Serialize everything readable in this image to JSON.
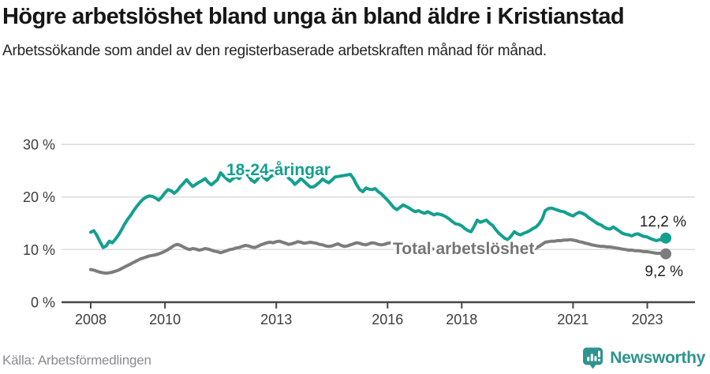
{
  "header": {
    "title": "Högre arbetslöshet bland unga än bland äldre i Kristianstad",
    "subtitle": "Arbetssökande som andel av den registerbaserade arbetskraften månad för månad."
  },
  "chart_data": {
    "type": "line",
    "title": "Högre arbetslöshet bland unga än bland äldre i Kristianstad",
    "subtitle": "Arbetssökande som andel av den registerbaserade arbetskraften månad för månad.",
    "unit": "%",
    "frequency": "monthly",
    "x_start": "2008-01",
    "x_end": "2023-07",
    "x_first_year": 2008,
    "x_span_years": 15.5,
    "x_tick_years": [
      2008,
      2010,
      2013,
      2016,
      2018,
      2021,
      2023
    ],
    "x_tick_labels": [
      "2008",
      "2010",
      "2013",
      "2016",
      "2018",
      "2021",
      "2023"
    ],
    "y_tick_values": [
      30,
      20,
      10,
      0
    ],
    "y_tick_labels": [
      "30 %",
      "20 %",
      "10 %",
      "0 %"
    ],
    "ylim": [
      0,
      30
    ],
    "grid": "horizontal",
    "legend": "inline-labels",
    "series": [
      {
        "name": "18-24-åringar",
        "color": "#13a08f",
        "end_value": 12.2,
        "end_label": "12,2 %",
        "values": [
          13.3,
          13.6,
          12.7,
          11.5,
          10.4,
          10.7,
          11.6,
          11.3,
          12.0,
          12.8,
          13.8,
          14.9,
          15.8,
          16.6,
          17.5,
          18.3,
          19.0,
          19.6,
          20.0,
          20.2,
          20.1,
          19.8,
          19.4,
          20.0,
          20.8,
          21.4,
          21.2,
          20.7,
          21.2,
          22.0,
          22.6,
          23.3,
          22.6,
          22.0,
          22.4,
          22.8,
          23.1,
          23.5,
          22.8,
          22.3,
          22.8,
          23.3,
          24.6,
          24.0,
          23.4,
          23.0,
          23.5,
          23.9,
          23.5,
          24.1,
          24.7,
          24.0,
          23.2,
          22.8,
          23.4,
          24.4,
          23.7,
          23.2,
          23.8,
          24.2,
          24.0,
          24.5,
          25.0,
          24.3,
          23.6,
          23.1,
          22.4,
          22.9,
          23.5,
          23.0,
          22.4,
          21.9,
          21.9,
          22.3,
          22.8,
          23.4,
          23.0,
          22.7,
          23.2,
          23.8,
          23.9,
          24.0,
          24.1,
          24.2,
          24.3,
          23.5,
          22.3,
          21.4,
          21.0,
          21.7,
          21.5,
          21.4,
          21.6,
          21.0,
          20.6,
          20.0,
          19.4,
          18.7,
          18.0,
          17.6,
          18.0,
          18.5,
          18.2,
          17.9,
          17.5,
          17.2,
          17.4,
          17.1,
          16.9,
          17.2,
          16.9,
          16.6,
          16.8,
          16.7,
          16.5,
          16.2,
          15.8,
          15.3,
          14.9,
          14.8,
          14.5,
          14.0,
          13.6,
          13.4,
          14.4,
          15.6,
          15.2,
          15.4,
          15.6,
          15.0,
          14.6,
          13.8,
          13.1,
          12.6,
          12.1,
          11.9,
          12.6,
          13.4,
          13.0,
          12.8,
          13.1,
          13.3,
          13.6,
          14.0,
          14.3,
          14.9,
          15.8,
          17.4,
          17.8,
          17.9,
          17.7,
          17.5,
          17.3,
          17.2,
          16.9,
          16.6,
          16.4,
          16.8,
          17.1,
          16.9,
          16.6,
          16.1,
          15.7,
          15.3,
          14.9,
          14.7,
          14.3,
          14.0,
          13.9,
          14.3,
          13.9,
          13.5,
          13.1,
          12.9,
          12.8,
          12.6,
          12.9,
          13.0,
          12.7,
          12.5,
          12.4,
          12.1,
          11.9,
          11.7,
          11.9,
          11.8,
          12.2
        ]
      },
      {
        "name": "Total arbetslöshet",
        "color": "#7c7c7c",
        "end_value": 9.2,
        "end_label": "9,2 %",
        "values": [
          6.2,
          6.1,
          5.9,
          5.7,
          5.6,
          5.5,
          5.6,
          5.7,
          5.9,
          6.1,
          6.4,
          6.7,
          7.0,
          7.3,
          7.6,
          7.9,
          8.2,
          8.4,
          8.6,
          8.8,
          8.9,
          9.0,
          9.2,
          9.4,
          9.7,
          10.0,
          10.4,
          10.8,
          11.0,
          10.8,
          10.5,
          10.2,
          10.0,
          10.2,
          10.1,
          9.9,
          10.0,
          10.2,
          10.1,
          9.9,
          9.7,
          9.6,
          9.4,
          9.6,
          9.8,
          10.0,
          10.1,
          10.3,
          10.4,
          10.6,
          10.8,
          10.7,
          10.5,
          10.4,
          10.6,
          10.9,
          11.1,
          11.3,
          11.4,
          11.3,
          11.5,
          11.6,
          11.4,
          11.2,
          11.0,
          11.1,
          11.3,
          11.5,
          11.4,
          11.2,
          11.3,
          11.4,
          11.3,
          11.2,
          11.0,
          10.9,
          10.7,
          10.6,
          10.7,
          10.9,
          11.1,
          10.8,
          10.6,
          10.7,
          10.9,
          11.1,
          11.3,
          11.2,
          11.0,
          10.9,
          11.1,
          11.3,
          11.2,
          11.0,
          10.9,
          11.0,
          11.2,
          11.3,
          11.1,
          11.0,
          10.9,
          10.8,
          10.9,
          11.0,
          10.9,
          10.7,
          10.6,
          10.5,
          10.4,
          10.3,
          10.2,
          10.1,
          10.0,
          9.9,
          10.0,
          10.1,
          10.0,
          9.9,
          9.8,
          9.7,
          9.6,
          9.5,
          9.4,
          9.3,
          9.3,
          9.2,
          9.3,
          9.4,
          9.5,
          9.4,
          9.3,
          9.4,
          9.5,
          9.4,
          9.3,
          9.4,
          9.5,
          9.6,
          9.7,
          9.8,
          9.7,
          9.8,
          9.9,
          10.0,
          10.3,
          10.6,
          11.0,
          11.4,
          11.5,
          11.6,
          11.6,
          11.7,
          11.7,
          11.8,
          11.8,
          11.9,
          11.8,
          11.7,
          11.5,
          11.4,
          11.2,
          11.1,
          10.9,
          10.8,
          10.7,
          10.6,
          10.6,
          10.5,
          10.5,
          10.4,
          10.3,
          10.2,
          10.1,
          10.0,
          9.9,
          9.9,
          9.8,
          9.8,
          9.7,
          9.6,
          9.6,
          9.5,
          9.4,
          9.3,
          9.3,
          9.2,
          9.2
        ]
      }
    ]
  },
  "footer": {
    "source": "Källa: Arbetsförmedlingen",
    "brand": "Newsworthy",
    "brand_icon": "newsworthy-pin-barchart-icon",
    "brand_color": "#2e948d"
  }
}
